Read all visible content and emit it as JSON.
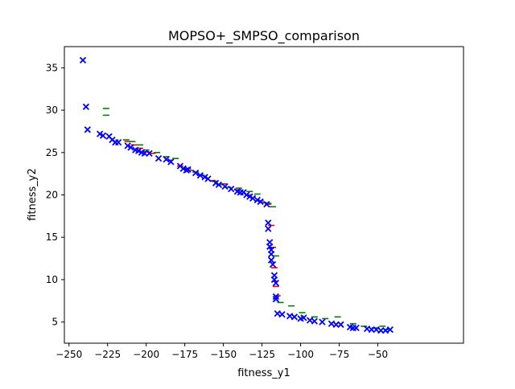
{
  "chart_data": {
    "type": "scatter",
    "title": "MOPSO+_SMPSO_comparison",
    "xlabel": "fitness_y1",
    "ylabel": "fitness_y2",
    "xlim": [
      -253,
      5.5
    ],
    "ylim": [
      2.5,
      37.5
    ],
    "x_ticks": [
      -250,
      -225,
      -200,
      -175,
      -150,
      -125,
      -100,
      -75,
      -50
    ],
    "y_ticks": [
      5,
      10,
      15,
      20,
      25,
      30,
      35
    ],
    "grid": false,
    "legend": "none",
    "series": [
      {
        "marker": "underscore",
        "color": "#ff0000",
        "points": [
          [
            -212,
            26.3
          ],
          [
            -208,
            25.9
          ],
          [
            -204,
            25.5
          ],
          [
            -200,
            25.1
          ],
          [
            -196,
            24.9
          ],
          [
            -185,
            24.1
          ],
          [
            -178,
            23.4
          ],
          [
            -172,
            22.9
          ],
          [
            -165,
            22.3
          ],
          [
            -157,
            21.7
          ],
          [
            -150,
            21.3
          ],
          [
            -141,
            20.6
          ],
          [
            -133,
            20.0
          ],
          [
            -126,
            19.3
          ],
          [
            -121,
            18.9
          ],
          [
            -119,
            16.4
          ],
          [
            -118,
            13.8
          ],
          [
            -117,
            11.4
          ],
          [
            -116,
            9.2
          ],
          [
            -115,
            8.1
          ]
        ]
      },
      {
        "marker": "underscore",
        "color": "#008000",
        "points": [
          [
            -226,
            30.2
          ],
          [
            -226,
            29.4
          ],
          [
            -213,
            26.5
          ],
          [
            -209,
            26.3
          ],
          [
            -204,
            25.9
          ],
          [
            -200,
            25.3
          ],
          [
            -193,
            25.0
          ],
          [
            -187,
            24.5
          ],
          [
            -181,
            24.3
          ],
          [
            -173,
            23.1
          ],
          [
            -168,
            22.7
          ],
          [
            -164,
            22.3
          ],
          [
            -156,
            21.6
          ],
          [
            -152,
            21.2
          ],
          [
            -147,
            20.9
          ],
          [
            -140,
            20.8
          ],
          [
            -133,
            20.4
          ],
          [
            -128,
            20.1
          ],
          [
            -124,
            19.1
          ],
          [
            -121,
            19.0
          ],
          [
            -118,
            18.6
          ],
          [
            -116,
            12.8
          ],
          [
            -113,
            7.3
          ],
          [
            -106,
            6.9
          ],
          [
            -99,
            6.1
          ],
          [
            -91,
            5.6
          ],
          [
            -84,
            5.4
          ],
          [
            -76,
            5.6
          ],
          [
            -66,
            4.8
          ],
          [
            -59,
            4.5
          ],
          [
            -52,
            4.3
          ],
          [
            -47,
            4.5
          ],
          [
            -44,
            4.1
          ]
        ]
      },
      {
        "marker": "x",
        "color": "#0000ff",
        "points": [
          [
            -241,
            35.9
          ],
          [
            -239,
            30.4
          ],
          [
            -238,
            27.7
          ],
          [
            -230,
            27.2
          ],
          [
            -228,
            27.0
          ],
          [
            -224,
            26.9
          ],
          [
            -222,
            26.5
          ],
          [
            -220,
            26.2
          ],
          [
            -218,
            26.2
          ],
          [
            -212,
            25.8
          ],
          [
            -210,
            25.6
          ],
          [
            -207,
            25.3
          ],
          [
            -205,
            25.2
          ],
          [
            -203,
            25.0
          ],
          [
            -201,
            24.9
          ],
          [
            -198,
            24.9
          ],
          [
            -192,
            24.3
          ],
          [
            -187,
            24.2
          ],
          [
            -184,
            23.9
          ],
          [
            -178,
            23.4
          ],
          [
            -176,
            23.1
          ],
          [
            -174,
            22.9
          ],
          [
            -173,
            23.0
          ],
          [
            -168,
            22.6
          ],
          [
            -165,
            22.3
          ],
          [
            -162,
            22.1
          ],
          [
            -160,
            21.9
          ],
          [
            -155,
            21.4
          ],
          [
            -153,
            21.2
          ],
          [
            -149,
            21.0
          ],
          [
            -145,
            20.7
          ],
          [
            -141,
            20.4
          ],
          [
            -139,
            20.3
          ],
          [
            -137,
            20.3
          ],
          [
            -135,
            20.0
          ],
          [
            -133,
            19.8
          ],
          [
            -131,
            19.6
          ],
          [
            -128,
            19.4
          ],
          [
            -126,
            19.2
          ],
          [
            -122,
            18.9
          ],
          [
            -121,
            16.7
          ],
          [
            -121,
            16.0
          ],
          [
            -120,
            14.4
          ],
          [
            -120,
            13.9
          ],
          [
            -119,
            13.5
          ],
          [
            -119,
            13.0
          ],
          [
            -119,
            12.3
          ],
          [
            -118,
            11.8
          ],
          [
            -117,
            10.5
          ],
          [
            -117,
            10.0
          ],
          [
            -116,
            9.6
          ],
          [
            -116,
            8.0
          ],
          [
            -116,
            7.7
          ],
          [
            -115,
            6.0
          ],
          [
            -112,
            5.9
          ],
          [
            -107,
            5.7
          ],
          [
            -104,
            5.6
          ],
          [
            -100,
            5.4
          ],
          [
            -98,
            5.5
          ],
          [
            -94,
            5.2
          ],
          [
            -91,
            5.1
          ],
          [
            -86,
            5.0
          ],
          [
            -80,
            4.8
          ],
          [
            -77,
            4.7
          ],
          [
            -74,
            4.7
          ],
          [
            -68,
            4.4
          ],
          [
            -66,
            4.3
          ],
          [
            -64,
            4.3
          ],
          [
            -57,
            4.2
          ],
          [
            -54,
            4.1
          ],
          [
            -51,
            4.1
          ],
          [
            -48,
            4.0
          ],
          [
            -45,
            4.0
          ],
          [
            -42,
            4.1
          ]
        ]
      }
    ]
  }
}
